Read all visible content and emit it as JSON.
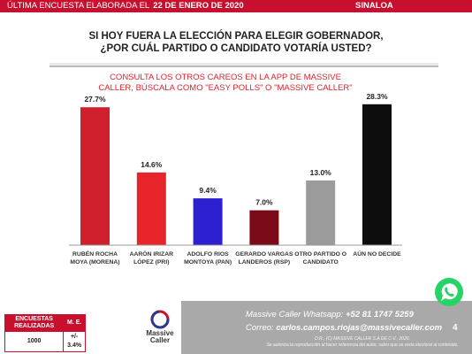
{
  "header": {
    "left_text": "ÚLTIMA ENCUESTA ELABORADA EL",
    "date": "22 DE ENERO DE 2020",
    "state": "SINALOA",
    "bar_color": "#c8102e"
  },
  "question": {
    "line1": "SI HOY FUERA LA ELECCIÓN PARA ELEGIR GOBERNADOR,",
    "line2": "¿POR CUÁL PARTIDO O CANDIDATO VOTARÍA USTED?"
  },
  "note": {
    "line1": "CONSULTA LOS OTROS CAREOS EN LA APP DE MASSIVE",
    "line2": "CALLER, BÚSCALA COMO \"EASY POLLS\" O \"MASSIVE CALLER\""
  },
  "chart_data": {
    "type": "bar",
    "title": "",
    "xlabel": "",
    "ylabel": "",
    "ylim": [
      0,
      32
    ],
    "grid": false,
    "legend": "none",
    "categories": [
      [
        "RUBÉN ROCHA",
        "MOYA (MORENA)"
      ],
      [
        "AARÓN IRIZAR",
        "LÓPEZ (PRI)"
      ],
      [
        "ADOLFO RIOS",
        "MONTOYA (PAN)"
      ],
      [
        "GERARDO VARGAS",
        "LANDEROS (RSP)"
      ],
      [
        "OTRO PARTIDO O",
        "CANDIDATO"
      ],
      [
        "AÚN NO DECIDE"
      ]
    ],
    "values": [
      27.7,
      14.6,
      9.4,
      7.0,
      13.0,
      28.3
    ],
    "value_labels": [
      "27.7%",
      "14.6%",
      "9.4%",
      "7.0%",
      "13.0%",
      "28.3%"
    ],
    "colors": [
      "#d01f2c",
      "#e8242b",
      "#2b1fcf",
      "#7a0b16",
      "#9b9b9b",
      "#0d0d0d"
    ]
  },
  "stats": {
    "label1": "ENCUESTAS REALIZADAS",
    "label2": "M. E.",
    "value1": "1000",
    "value2": "+/- 3.4%"
  },
  "logo": {
    "line1": "Massive",
    "line2": "Caller"
  },
  "contact": {
    "whatsapp_label": "Massive Caller Whatsapp:",
    "whatsapp_number": "+52 81 1747 5259",
    "email_label": "Correo:",
    "email": "carlos.campos.riojas@massivecaller.com",
    "page_number": "4",
    "copyright": "D.R., (C) MASSIVE CALLER S.A DE C.V., 2020.",
    "legal": "Se autoriza la reproducción al hacer referencia del autor, salvo que se veda electoral al contenido."
  }
}
